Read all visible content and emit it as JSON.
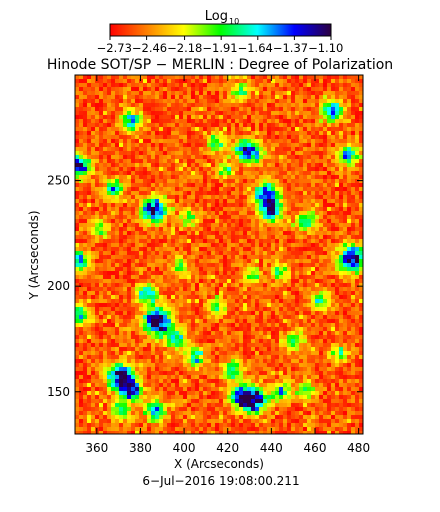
{
  "chart_data": {
    "type": "heatmap",
    "title": "Hinode SOT/SP − MERLIN : Degree of Polarization",
    "subtitle": "6−Jul−2016 19:08:00.211",
    "xlabel": "X (Arcseconds)",
    "ylabel": "Y (Arcseconds)",
    "xlim": [
      350,
      482
    ],
    "ylim": [
      130,
      300
    ],
    "x_ticks": [
      360,
      380,
      400,
      420,
      440,
      460,
      480
    ],
    "y_ticks": [
      150,
      200,
      250
    ],
    "x_tick_labels": [
      "360",
      "380",
      "400",
      "420",
      "440",
      "460",
      "480"
    ],
    "y_tick_labels": [
      "150",
      "200",
      "250"
    ],
    "colorbar": {
      "label_main": "Log",
      "label_sub": "10",
      "range": [
        -2.73,
        -1.1
      ],
      "tick_values": [
        -2.73,
        -2.46,
        -2.18,
        -1.91,
        -1.64,
        -1.37,
        -1.1
      ],
      "tick_labels_text": "−2.73−2.46−2.18−1.91−1.64−1.37−1.10",
      "colormap": [
        "#ff0000",
        "#ff8000",
        "#ffff00",
        "#00ff00",
        "#00ffff",
        "#0000ff",
        "#2b0040"
      ]
    },
    "noise_level": -2.55,
    "features": [
      {
        "x": 386,
        "y": 236,
        "strength": 1.3
      },
      {
        "x": 368,
        "y": 246,
        "strength": 0.8
      },
      {
        "x": 352,
        "y": 257,
        "strength": 1.1
      },
      {
        "x": 352,
        "y": 212,
        "strength": 0.9
      },
      {
        "x": 351,
        "y": 187,
        "strength": 1.0
      },
      {
        "x": 388,
        "y": 183,
        "strength": 1.5
      },
      {
        "x": 383,
        "y": 196,
        "strength": 0.9
      },
      {
        "x": 397,
        "y": 175,
        "strength": 0.8
      },
      {
        "x": 371,
        "y": 157,
        "strength": 1.4
      },
      {
        "x": 376,
        "y": 150,
        "strength": 1.0
      },
      {
        "x": 405,
        "y": 166,
        "strength": 0.8
      },
      {
        "x": 387,
        "y": 141,
        "strength": 0.9
      },
      {
        "x": 371,
        "y": 141,
        "strength": 0.7
      },
      {
        "x": 432,
        "y": 146,
        "strength": 1.4
      },
      {
        "x": 426,
        "y": 148,
        "strength": 1.0
      },
      {
        "x": 422,
        "y": 160,
        "strength": 0.8
      },
      {
        "x": 445,
        "y": 150,
        "strength": 0.7
      },
      {
        "x": 450,
        "y": 174,
        "strength": 0.7
      },
      {
        "x": 438,
        "y": 243,
        "strength": 1.3
      },
      {
        "x": 440,
        "y": 235,
        "strength": 1.0
      },
      {
        "x": 432,
        "y": 263,
        "strength": 0.9
      },
      {
        "x": 427,
        "y": 265,
        "strength": 0.8
      },
      {
        "x": 477,
        "y": 213,
        "strength": 1.4
      },
      {
        "x": 475,
        "y": 262,
        "strength": 0.9
      },
      {
        "x": 468,
        "y": 283,
        "strength": 1.0
      },
      {
        "x": 456,
        "y": 231,
        "strength": 0.8
      },
      {
        "x": 415,
        "y": 268,
        "strength": 0.7
      },
      {
        "x": 402,
        "y": 232,
        "strength": 0.6
      },
      {
        "x": 398,
        "y": 209,
        "strength": 0.6
      },
      {
        "x": 426,
        "y": 292,
        "strength": 0.7
      },
      {
        "x": 376,
        "y": 278,
        "strength": 0.9
      },
      {
        "x": 463,
        "y": 193,
        "strength": 0.7
      },
      {
        "x": 444,
        "y": 207,
        "strength": 0.6
      },
      {
        "x": 431,
        "y": 205,
        "strength": 0.6
      },
      {
        "x": 415,
        "y": 190,
        "strength": 0.6
      },
      {
        "x": 419,
        "y": 255,
        "strength": 0.6
      },
      {
        "x": 361,
        "y": 227,
        "strength": 0.6
      },
      {
        "x": 471,
        "y": 168,
        "strength": 0.6
      },
      {
        "x": 456,
        "y": 151,
        "strength": 0.6
      }
    ]
  }
}
